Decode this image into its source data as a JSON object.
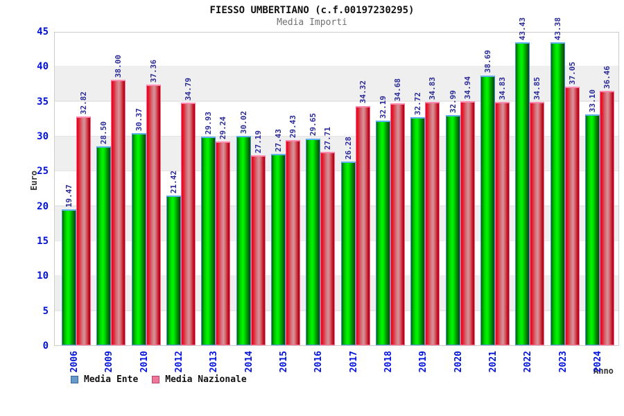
{
  "chart_data": {
    "type": "bar",
    "title": "FIESSO UMBERTIANO (c.f.00197230295)",
    "subtitle": "Media Importi",
    "xlabel": "Anno",
    "ylabel": "Euro",
    "ylim": [
      0,
      45
    ],
    "yticks": [
      0,
      5,
      10,
      15,
      20,
      25,
      30,
      35,
      40,
      45
    ],
    "grid": "horizontal gridlines with alternating white/light-gray bands",
    "legend_position": "bottom-left",
    "categories": [
      "2006",
      "2009",
      "2010",
      "2012",
      "2013",
      "2014",
      "2015",
      "2016",
      "2017",
      "2018",
      "2019",
      "2020",
      "2021",
      "2022",
      "2023",
      "2024"
    ],
    "series": [
      {
        "name": "Media Ente",
        "values": [
          "19.47",
          "28.50",
          "30.37",
          "21.42",
          "29.93",
          "30.02",
          "27.43",
          "29.65",
          "26.28",
          "32.19",
          "32.72",
          "32.99",
          "38.69",
          "43.43",
          "43.38",
          "33.10"
        ]
      },
      {
        "name": "Media Nazionale",
        "values": [
          "32.82",
          "38.00",
          "37.36",
          "34.79",
          "29.24",
          "27.19",
          "29.43",
          "27.71",
          "34.32",
          "34.68",
          "34.83",
          "34.94",
          "34.83",
          "34.85",
          "37.05",
          "36.46"
        ]
      }
    ],
    "colors": {
      "bar_media_ente": "#00dd00",
      "bar_media_ente_cap": "#5fb2ee",
      "bar_media_nazionale": "#dd1f2e",
      "bar_media_nazionale_cap": "#ff8ab2",
      "legend_swatch_ente": "#6699cc",
      "legend_swatch_nazionale": "#ee7799",
      "axis_tick_text": "#0011dd",
      "value_label_text": "#2b2b9b",
      "subtitle_text": "#707070"
    }
  }
}
